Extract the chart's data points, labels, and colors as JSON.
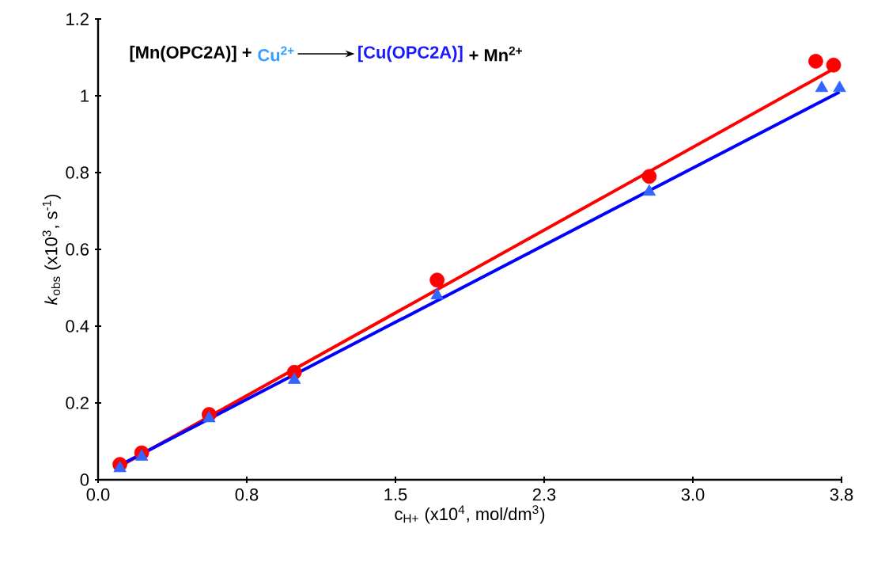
{
  "chart_data": {
    "type": "scatter",
    "xlabel": "c$_{H+}$ (x10$^{4}$, mol/dm$^{3}$)",
    "ylabel": "*k*$_{obs}$ (x10$^{3}$, s$^{-1}$)",
    "annotations": [
      "[Mn(OPC2A)] +",
      "Cu$^{2+}$",
      "[Cu(OPC2A)]",
      "+ Mn$^{2+}$"
    ],
    "xlim": [
      0,
      3.75
    ],
    "ylim": [
      0,
      1.2
    ],
    "xticks": [
      {
        "value": 0,
        "label": "0.0"
      },
      {
        "value": 0.75,
        "label": "0.8"
      },
      {
        "value": 1.5,
        "label": "1.5"
      },
      {
        "value": 2.25,
        "label": "2.3"
      },
      {
        "value": 3.0,
        "label": "3.0"
      },
      {
        "value": 3.75,
        "label": "3.8"
      }
    ],
    "yticks": [
      0,
      0.2,
      0.4,
      0.6,
      0.8,
      1,
      1.2
    ],
    "grid": false,
    "series": [
      {
        "type": "scatter",
        "marker": "circle",
        "color": "#ff0000",
        "x": [
          0.11,
          0.22,
          0.56,
          0.99,
          1.71,
          2.78,
          3.62,
          3.71
        ],
        "values": [
          0.04,
          0.07,
          0.17,
          0.28,
          0.52,
          0.79,
          1.09,
          1.08
        ]
      },
      {
        "type": "scatter",
        "marker": "triangle",
        "color": "#3366ff",
        "x": [
          0.11,
          0.22,
          0.56,
          0.99,
          1.71,
          2.78,
          3.65,
          3.74
        ],
        "values": [
          0.03,
          0.06,
          0.16,
          0.26,
          0.48,
          0.75,
          1.02,
          1.02
        ]
      },
      {
        "type": "line",
        "marker": "none",
        "color": "#ff0000",
        "x": [
          0.11,
          3.71
        ],
        "values": [
          0.035,
          1.07
        ]
      },
      {
        "type": "line",
        "marker": "none",
        "color": "#0000ff",
        "x": [
          0.08,
          3.74
        ],
        "values": [
          0.03,
          1.01
        ]
      }
    ]
  }
}
